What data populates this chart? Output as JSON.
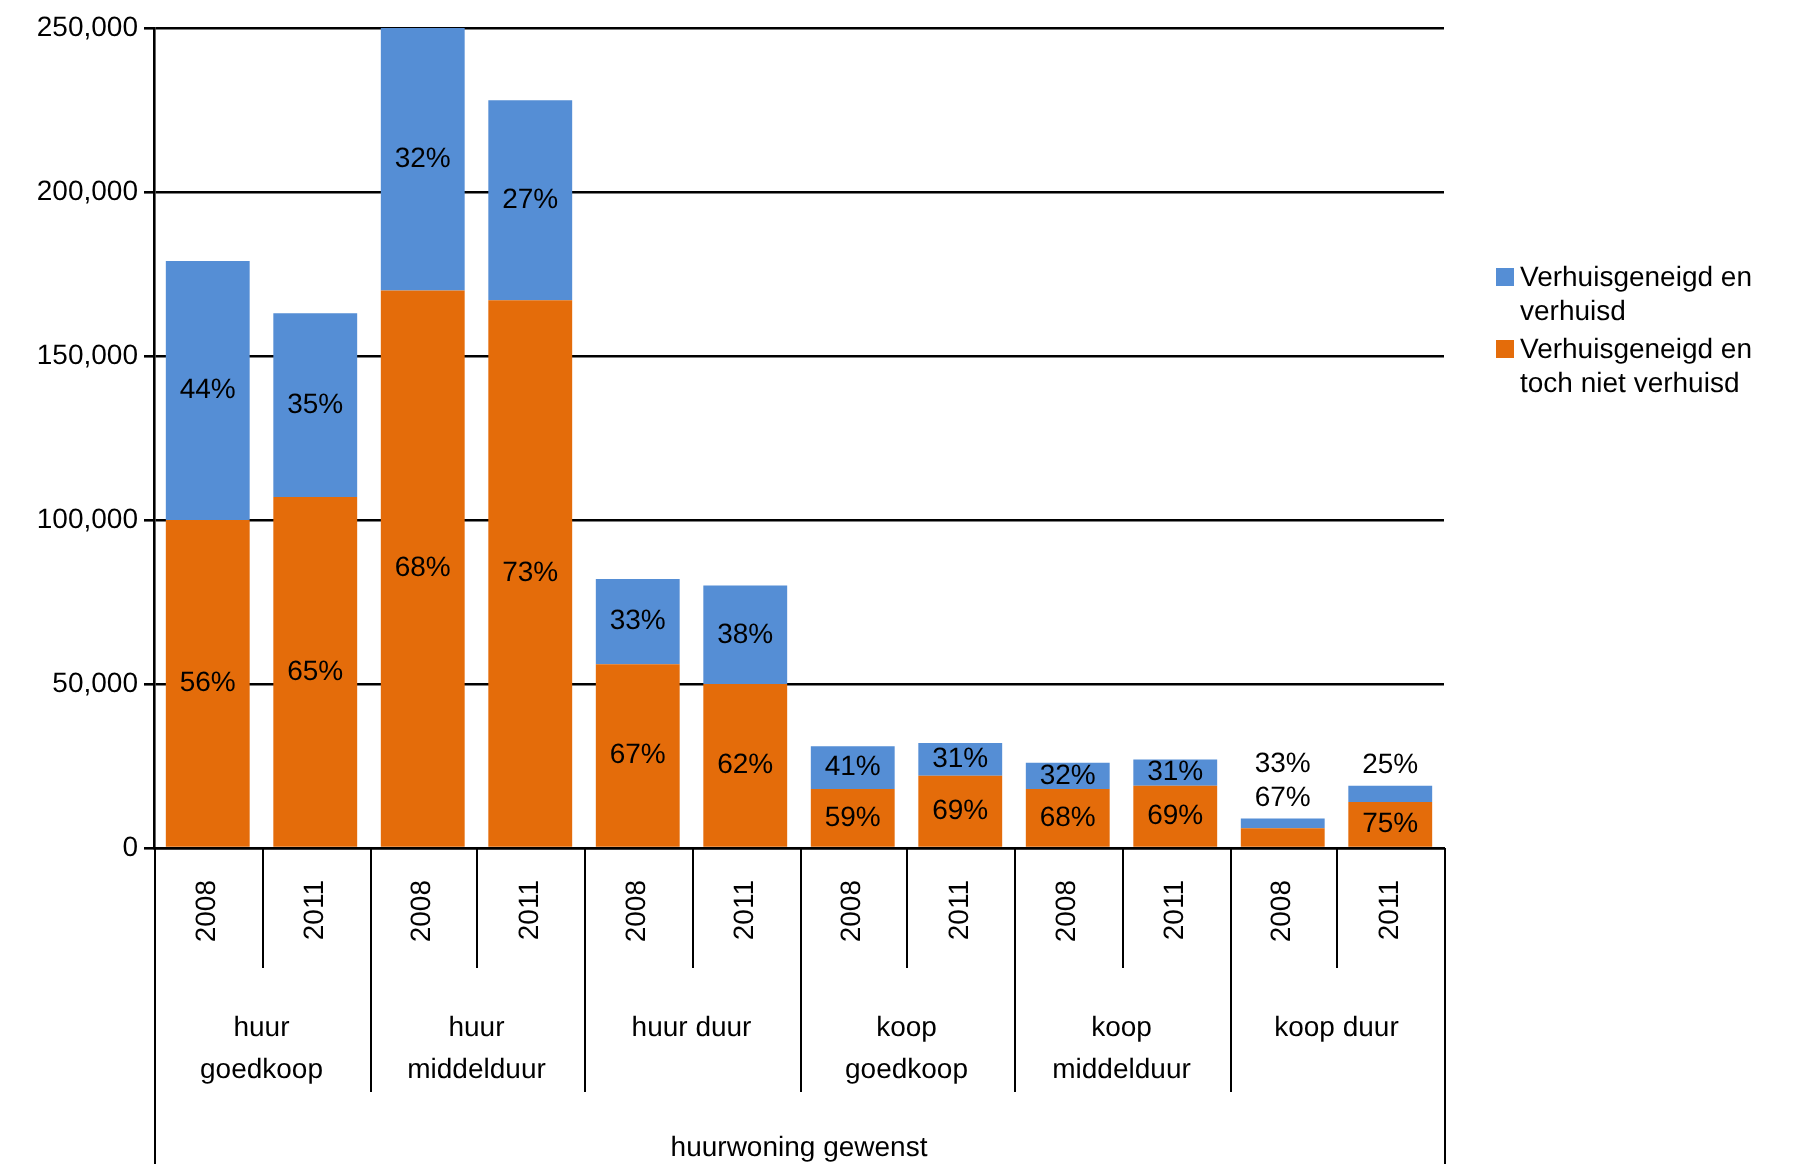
{
  "chart_data": {
    "type": "bar",
    "stacked": true,
    "categories": [
      "2008",
      "2011",
      "2008",
      "2011",
      "2008",
      "2011",
      "2008",
      "2011",
      "2008",
      "2011",
      "2008",
      "2011"
    ],
    "series": [
      {
        "name": "Verhuisgeneigd en toch niet verhuisd",
        "color": "#e46c0a",
        "values": [
          100000,
          107000,
          170000,
          167000,
          56000,
          50000,
          18000,
          22000,
          18000,
          19000,
          6000,
          14000
        ]
      },
      {
        "name": "Verhuisgeneigd en verhuisd",
        "color": "#558ed5",
        "values": [
          79000,
          56000,
          80000,
          61000,
          26000,
          30000,
          13000,
          10000,
          8000,
          8000,
          3000,
          5000
        ]
      }
    ],
    "annotations": [
      "56%",
      "44%",
      "65%",
      "35%",
      "68%",
      "32%",
      "73%",
      "27%",
      "67%",
      "33%",
      "62%",
      "38%",
      "59%",
      "41%",
      "69%",
      "31%",
      "68%",
      "32%",
      "69%",
      "31%",
      "67%",
      "33%",
      "75%",
      "25%",
      "huur goedkoop",
      "huur middelduur",
      "huur duur",
      "koop goedkoop",
      "koop middelduur",
      "koop duur",
      "huurwoning gewenst"
    ],
    "ylim": [
      0,
      250000
    ],
    "yticks": [
      0,
      {
        "value": 50000,
        "label": "50,000"
      },
      {
        "value": 100000,
        "label": "100,000"
      },
      {
        "value": 150000,
        "label": "150,000"
      },
      {
        "value": 200000,
        "label": "200,000"
      },
      {
        "value": 250000,
        "label": "250,000"
      }
    ],
    "grid": "y",
    "legend": "right"
  }
}
